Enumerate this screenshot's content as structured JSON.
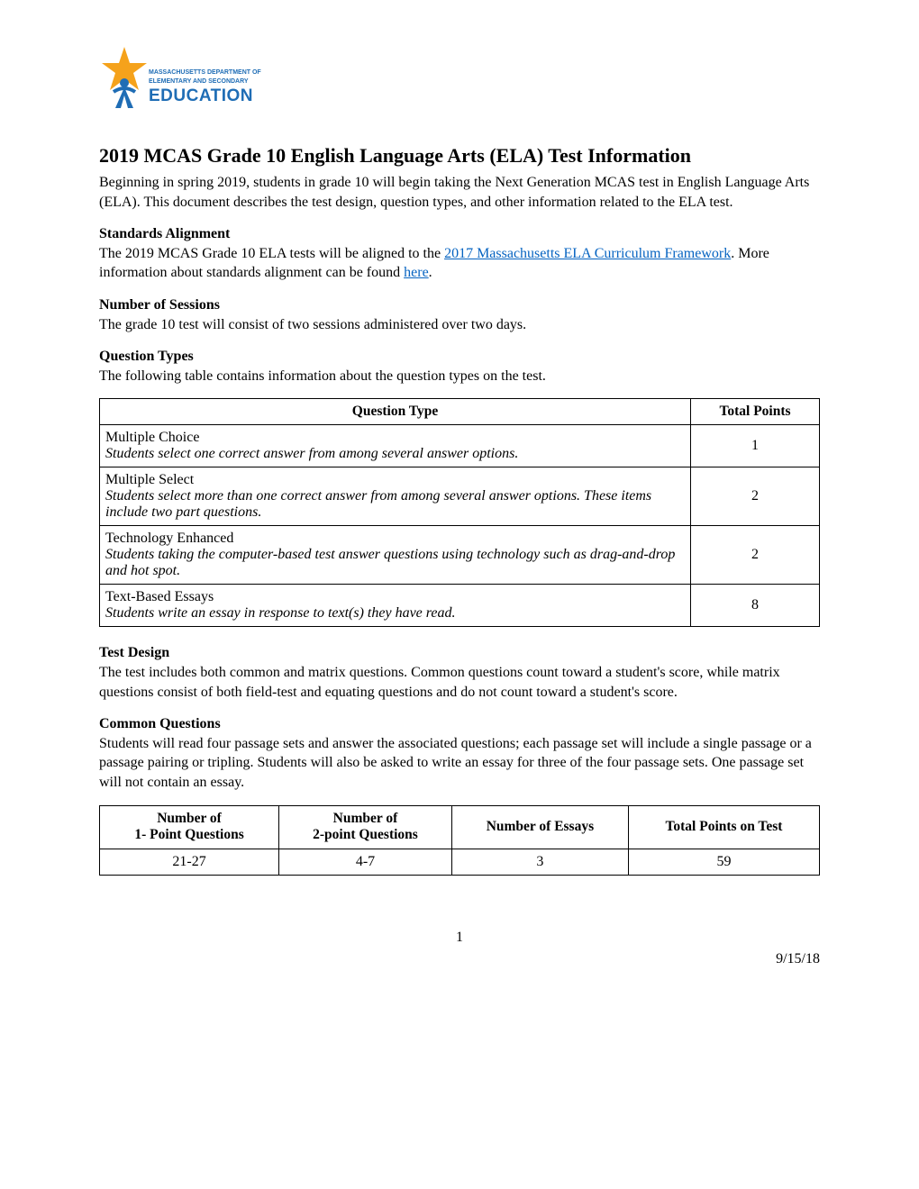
{
  "logo": {
    "topline": "MASSACHUSETTS DEPARTMENT OF",
    "midline": "ELEMENTARY AND SECONDARY",
    "mainword": "EDUCATION",
    "star_color": "#f5a21b",
    "person_color": "#1f6db5",
    "text_color": "#1f6db5"
  },
  "title": "2019 MCAS Grade 10 English Language Arts (ELA) Test Information",
  "intro": "Beginning in spring 2019, students in grade 10 will begin taking the Next Generation MCAS test in English Language Arts (ELA). This document describes the test design, question types, and other information related to the ELA test.",
  "standards": {
    "heading": "Standards Alignment",
    "pre": "The 2019 MCAS Grade 10 ELA tests will be aligned to the ",
    "link1": "2017 Massachusetts ELA Curriculum Framework",
    "mid": ". More information about standards alignment can be found ",
    "link2": "here",
    "post": "."
  },
  "sessions": {
    "heading": "Number of Sessions",
    "text": "The grade 10 test will consist of two sessions administered over two days."
  },
  "qtypes": {
    "heading": "Question Types",
    "intro": "The following table contains information about the question types on the test.",
    "columns": [
      "Question Type",
      "Total Points"
    ],
    "rows": [
      {
        "name": "Multiple Choice",
        "desc": "Students select one correct answer from among several answer options.",
        "points": "1"
      },
      {
        "name": "Multiple Select",
        "desc": "Students select more than one correct answer from among several answer options. These items include two part questions.",
        "points": "2"
      },
      {
        "name": "Technology Enhanced",
        "desc": "Students taking the computer-based test answer questions using technology such as drag-and-drop and hot spot.",
        "points": "2"
      },
      {
        "name": "Text-Based Essays",
        "desc": "Students write an essay in response to text(s) they have read.",
        "points": "8"
      }
    ]
  },
  "testdesign": {
    "heading": "Test Design",
    "text": "The test includes both common and matrix questions. Common questions count toward a student's score, while matrix questions consist of both field-test and equating questions and do not count toward a student's score."
  },
  "common": {
    "heading": "Common Questions",
    "text": "Students will read four passage sets and answer the associated questions; each passage set will include a single passage or a passage pairing or tripling. Students will also be asked to write an essay for three of the four passage sets. One passage set will not contain an essay.",
    "columns": [
      "Number of\n1- Point Questions",
      "Number of\n2-point Questions",
      "Number of Essays",
      "Total Points on Test"
    ],
    "row": [
      "21-27",
      "4-7",
      "3",
      "59"
    ]
  },
  "page_number": "1",
  "footer_date": "9/15/18"
}
